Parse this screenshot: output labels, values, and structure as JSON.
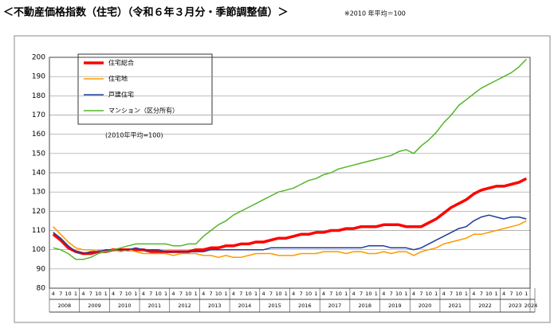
{
  "chart_data": {
    "type": "line",
    "title": "＜不動産価格指数（住宅）（令和６年３月分・季節調整値）＞",
    "note": "※2010 年平均＝100",
    "annotation": "(2010年平均=100)",
    "categories": [
      "4",
      "7",
      "10",
      "1",
      "4",
      "7",
      "10",
      "1",
      "4",
      "7",
      "10",
      "1",
      "4",
      "7",
      "10",
      "1",
      "4",
      "7",
      "10",
      "1",
      "4",
      "7",
      "10",
      "1",
      "4",
      "7",
      "10",
      "1",
      "4",
      "7",
      "10",
      "1",
      "4",
      "7",
      "10",
      "1",
      "4",
      "7",
      "10",
      "1",
      "4",
      "7",
      "10",
      "1",
      "4",
      "7",
      "10",
      "1",
      "4",
      "7",
      "10",
      "1",
      "4",
      "7",
      "10",
      "1",
      "4",
      "7",
      "10",
      "1",
      "4",
      "7",
      "10",
      "1"
    ],
    "years": [
      "2008",
      "2009",
      "2010",
      "2011",
      "2012",
      "2013",
      "2014",
      "2015",
      "2016",
      "2017",
      "2018",
      "2019",
      "2020",
      "2021",
      "2022",
      "2023",
      "2024"
    ],
    "series": [
      {
        "name": "住宅総合",
        "color": "#ff0000",
        "width": 3.5,
        "values": [
          108,
          105,
          101,
          99,
          98,
          98,
          99,
          99,
          100,
          100,
          100,
          100,
          100,
          99,
          99,
          99,
          99,
          99,
          99,
          100,
          100,
          101,
          101,
          102,
          102,
          103,
          103,
          104,
          104,
          105,
          106,
          106,
          107,
          108,
          108,
          109,
          109,
          110,
          110,
          111,
          111,
          112,
          112,
          112,
          113,
          113,
          113,
          112,
          112,
          112,
          114,
          116,
          119,
          122,
          124,
          126,
          129,
          131,
          132,
          133,
          133,
          134,
          135,
          137
        ]
      },
      {
        "name": "住宅地",
        "color": "#ff9900",
        "width": 1.5,
        "values": [
          112,
          108,
          104,
          101,
          100,
          100,
          99,
          99,
          100,
          99,
          100,
          99,
          98,
          98,
          98,
          98,
          97,
          98,
          98,
          98,
          97,
          97,
          96,
          97,
          96,
          96,
          97,
          98,
          98,
          98,
          97,
          97,
          97,
          98,
          98,
          98,
          99,
          99,
          99,
          98,
          99,
          99,
          98,
          98,
          99,
          98,
          99,
          99,
          97,
          99,
          100,
          101,
          103,
          104,
          105,
          106,
          108,
          108,
          109,
          110,
          111,
          112,
          113,
          115
        ]
      },
      {
        "name": "戸建住宅",
        "color": "#1f3c99",
        "width": 1.5,
        "values": [
          109,
          106,
          102,
          99,
          98,
          99,
          99,
          100,
          100,
          100,
          100,
          101,
          100,
          100,
          100,
          99,
          99,
          99,
          99,
          99,
          99,
          100,
          100,
          100,
          100,
          100,
          100,
          100,
          100,
          101,
          101,
          101,
          101,
          101,
          101,
          101,
          101,
          101,
          101,
          101,
          101,
          101,
          102,
          102,
          102,
          101,
          101,
          101,
          100,
          101,
          103,
          105,
          107,
          109,
          111,
          112,
          115,
          117,
          118,
          117,
          116,
          117,
          117,
          116
        ]
      },
      {
        "name": "マンション（区分所有）",
        "color": "#55b52a",
        "width": 1.5,
        "values": [
          101,
          100,
          98,
          95,
          95,
          96,
          98,
          99,
          100,
          101,
          102,
          103,
          103,
          103,
          103,
          103,
          102,
          102,
          103,
          103,
          107,
          110,
          113,
          115,
          118,
          120,
          122,
          124,
          126,
          128,
          130,
          131,
          132,
          134,
          136,
          137,
          139,
          140,
          142,
          143,
          144,
          145,
          146,
          147,
          148,
          149,
          151,
          152,
          150,
          154,
          157,
          161,
          166,
          170,
          175,
          178,
          181,
          184,
          186,
          188,
          190,
          192,
          195,
          199
        ]
      }
    ],
    "ylim": [
      80,
      200
    ],
    "yticks": [
      80,
      90,
      100,
      110,
      120,
      130,
      140,
      150,
      160,
      170,
      180,
      190,
      200
    ],
    "grid": true
  }
}
